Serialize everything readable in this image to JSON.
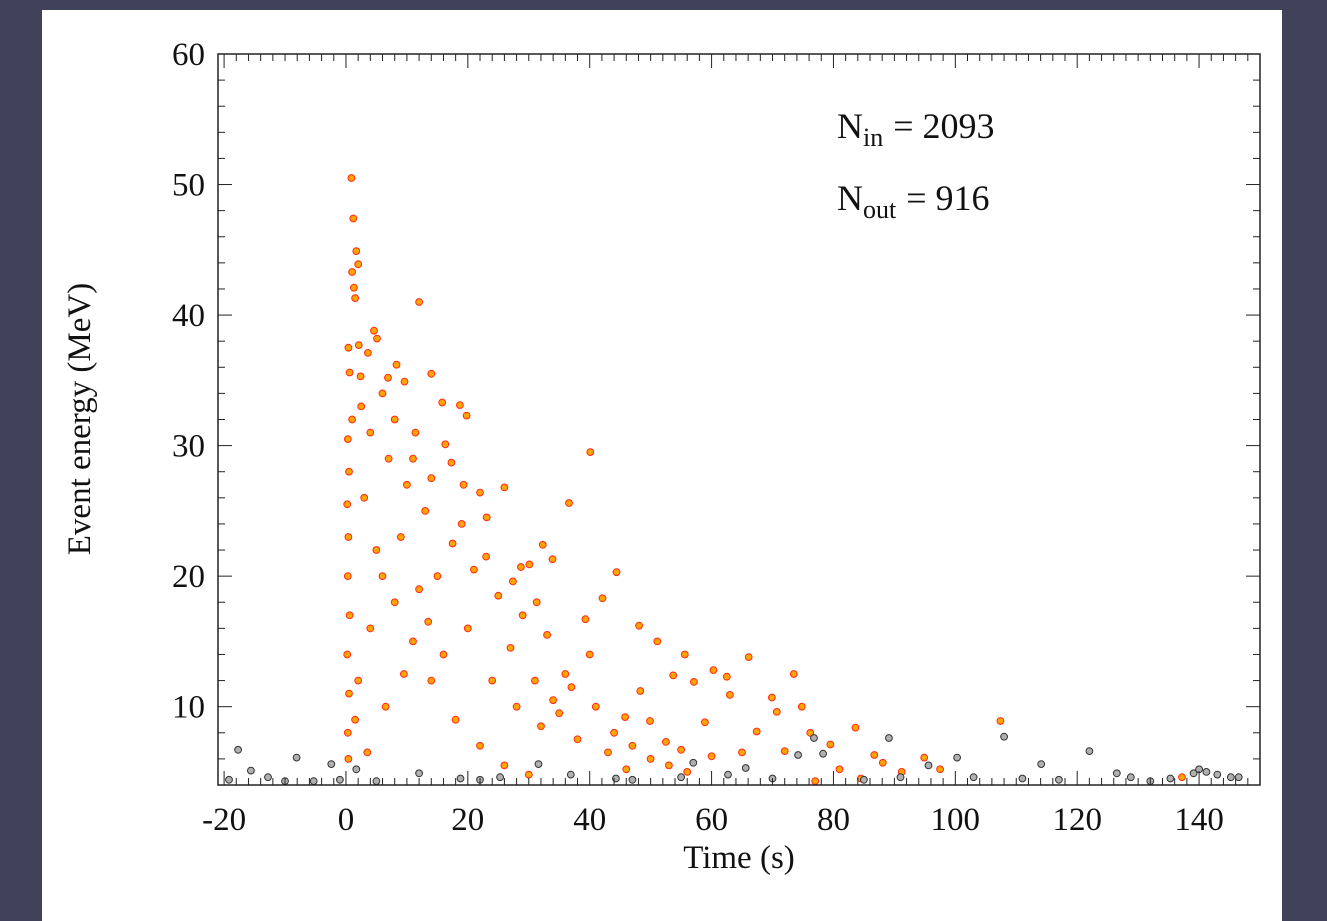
{
  "chart_data": {
    "type": "scatter",
    "xlabel": "Time (s)",
    "ylabel": "Event energy (MeV)",
    "xlim": [
      -21,
      150
    ],
    "ylim": [
      4,
      60
    ],
    "x_ticks": [
      "-20",
      "0",
      "20",
      "40",
      "60",
      "80",
      "100",
      "120",
      "140"
    ],
    "y_ticks": [
      "10",
      "20",
      "30",
      "40",
      "50",
      "60"
    ],
    "annotations": {
      "n_in": {
        "symbol": "N",
        "sub": "in",
        "value": "= 2093"
      },
      "n_out": {
        "symbol": "N",
        "sub": "out",
        "value": "= 916"
      }
    },
    "series": [
      {
        "role": "inside window",
        "color": "#ffa500",
        "edge": "#ff2a1a",
        "count": 2093,
        "points": [
          [
            0.9,
            50.5
          ],
          [
            1.2,
            47.4
          ],
          [
            1.7,
            44.9
          ],
          [
            2.0,
            43.9
          ],
          [
            1.0,
            43.3
          ],
          [
            1.3,
            42.1
          ],
          [
            1.5,
            41.3
          ],
          [
            12.0,
            41.0
          ],
          [
            4.6,
            38.8
          ],
          [
            5.1,
            38.2
          ],
          [
            2.1,
            37.7
          ],
          [
            0.4,
            37.5
          ],
          [
            3.6,
            37.1
          ],
          [
            8.3,
            36.2
          ],
          [
            6.9,
            35.2
          ],
          [
            14.0,
            35.5
          ],
          [
            0.6,
            35.6
          ],
          [
            2.4,
            35.3
          ],
          [
            9.6,
            34.9
          ],
          [
            15.8,
            33.3
          ],
          [
            18.7,
            33.1
          ],
          [
            19.8,
            32.3
          ],
          [
            11.4,
            31.0
          ],
          [
            16.3,
            30.1
          ],
          [
            40.1,
            29.5
          ],
          [
            17.3,
            28.7
          ],
          [
            26.0,
            26.8
          ],
          [
            36.6,
            25.6
          ],
          [
            19.3,
            27.0
          ],
          [
            22.0,
            26.4
          ],
          [
            23.1,
            24.5
          ],
          [
            32.3,
            22.4
          ],
          [
            33.9,
            21.3
          ],
          [
            28.7,
            20.7
          ],
          [
            44.4,
            20.3
          ],
          [
            30.1,
            20.9
          ],
          [
            27.4,
            19.6
          ],
          [
            31.3,
            18.0
          ],
          [
            39.3,
            16.7
          ],
          [
            42.1,
            18.3
          ],
          [
            51.1,
            15.0
          ],
          [
            48.1,
            16.2
          ],
          [
            55.6,
            14.0
          ],
          [
            66.1,
            13.8
          ],
          [
            62.5,
            12.3
          ],
          [
            60.3,
            12.8
          ],
          [
            73.5,
            12.5
          ],
          [
            57.1,
            11.9
          ],
          [
            53.7,
            12.4
          ],
          [
            48.3,
            11.2
          ],
          [
            63.0,
            10.9
          ],
          [
            69.9,
            10.7
          ],
          [
            74.8,
            10.0
          ],
          [
            83.6,
            8.4
          ],
          [
            107.4,
            8.9
          ],
          [
            45.8,
            9.2
          ],
          [
            49.9,
            8.9
          ],
          [
            58.9,
            8.8
          ],
          [
            67.4,
            8.1
          ],
          [
            70.7,
            9.6
          ],
          [
            76.2,
            8.0
          ],
          [
            79.5,
            7.1
          ],
          [
            86.7,
            6.3
          ],
          [
            88.1,
            5.7
          ],
          [
            94.9,
            6.1
          ],
          [
            97.5,
            5.2
          ],
          [
            91.2,
            5.0
          ],
          [
            60.0,
            6.2
          ],
          [
            55.0,
            6.7
          ],
          [
            52.5,
            7.3
          ],
          [
            65.0,
            6.5
          ],
          [
            72.0,
            6.6
          ],
          [
            81.0,
            5.2
          ],
          [
            84.5,
            4.5
          ],
          [
            77.0,
            4.3
          ],
          [
            137.2,
            4.6
          ],
          [
            40.0,
            14.0
          ],
          [
            36.0,
            12.5
          ],
          [
            33.0,
            15.5
          ],
          [
            29.0,
            17.0
          ],
          [
            25.0,
            18.5
          ],
          [
            21.0,
            20.5
          ],
          [
            17.5,
            22.5
          ],
          [
            13.0,
            25.0
          ],
          [
            10.0,
            27.0
          ],
          [
            7.0,
            29.0
          ],
          [
            4.0,
            31.0
          ],
          [
            2.5,
            33.0
          ],
          [
            1.0,
            32.0
          ],
          [
            0.3,
            30.5
          ],
          [
            0.5,
            28.0
          ],
          [
            0.2,
            25.5
          ],
          [
            0.4,
            23.0
          ],
          [
            0.3,
            20.0
          ],
          [
            0.6,
            17.0
          ],
          [
            0.2,
            14.0
          ],
          [
            0.5,
            11.0
          ],
          [
            0.3,
            8.0
          ],
          [
            0.4,
            6.0
          ],
          [
            3.0,
            26.0
          ],
          [
            5.0,
            22.0
          ],
          [
            8.0,
            18.0
          ],
          [
            11.0,
            15.0
          ],
          [
            14.0,
            12.0
          ],
          [
            18.0,
            9.0
          ],
          [
            22.0,
            7.0
          ],
          [
            26.0,
            5.5
          ],
          [
            30.0,
            4.8
          ],
          [
            35.0,
            9.5
          ],
          [
            38.0,
            7.5
          ],
          [
            43.0,
            6.5
          ],
          [
            46.0,
            5.2
          ],
          [
            16.0,
            14.0
          ],
          [
            20.0,
            16.0
          ],
          [
            24.0,
            12.0
          ],
          [
            28.0,
            10.0
          ],
          [
            32.0,
            8.5
          ],
          [
            12.0,
            19.0
          ],
          [
            9.0,
            23.0
          ],
          [
            6.0,
            20.0
          ],
          [
            4.0,
            16.0
          ],
          [
            2.0,
            12.0
          ],
          [
            1.5,
            9.0
          ],
          [
            3.5,
            6.5
          ],
          [
            6.5,
            10.0
          ],
          [
            9.5,
            12.5
          ],
          [
            13.5,
            16.5
          ],
          [
            15.0,
            20.0
          ],
          [
            19.0,
            24.0
          ],
          [
            23.0,
            21.5
          ],
          [
            27.0,
            14.5
          ],
          [
            31.0,
            12.0
          ],
          [
            34.0,
            10.5
          ],
          [
            37.0,
            11.5
          ],
          [
            41.0,
            10.0
          ],
          [
            44.0,
            8.0
          ],
          [
            47.0,
            7.0
          ],
          [
            50.0,
            6.0
          ],
          [
            53.0,
            5.5
          ],
          [
            56.0,
            5.0
          ],
          [
            8.0,
            32.0
          ],
          [
            11.0,
            29.0
          ],
          [
            14.0,
            27.5
          ],
          [
            6.0,
            34.0
          ]
        ]
      },
      {
        "role": "outside window",
        "color": "#b0b0b0",
        "edge": "#333333",
        "count": 916,
        "points": [
          [
            -17.7,
            6.7
          ],
          [
            -15.6,
            5.1
          ],
          [
            -19.2,
            4.4
          ],
          [
            -12.8,
            4.6
          ],
          [
            -8.1,
            6.1
          ],
          [
            -2.4,
            5.6
          ],
          [
            -5.3,
            4.3
          ],
          [
            1.7,
            5.2
          ],
          [
            12.0,
            4.9
          ],
          [
            18.8,
            4.5
          ],
          [
            25.3,
            4.6
          ],
          [
            31.6,
            5.6
          ],
          [
            36.9,
            4.8
          ],
          [
            44.3,
            4.5
          ],
          [
            55.0,
            4.6
          ],
          [
            62.7,
            4.8
          ],
          [
            65.6,
            5.3
          ],
          [
            74.2,
            6.3
          ],
          [
            78.3,
            6.4
          ],
          [
            76.8,
            7.6
          ],
          [
            89.1,
            7.6
          ],
          [
            95.6,
            5.5
          ],
          [
            100.3,
            6.1
          ],
          [
            108.0,
            7.7
          ],
          [
            114.1,
            5.6
          ],
          [
            122.0,
            6.6
          ],
          [
            126.5,
            4.9
          ],
          [
            128.8,
            4.6
          ],
          [
            135.3,
            4.5
          ],
          [
            139.1,
            4.9
          ],
          [
            141.2,
            5.0
          ],
          [
            143.0,
            4.8
          ],
          [
            145.2,
            4.6
          ],
          [
            146.5,
            4.6
          ],
          [
            -10.0,
            4.3
          ],
          [
            -1.0,
            4.4
          ],
          [
            5.0,
            4.3
          ],
          [
            22.0,
            4.4
          ],
          [
            47.0,
            4.4
          ],
          [
            70.0,
            4.5
          ],
          [
            85.0,
            4.4
          ],
          [
            103.0,
            4.6
          ],
          [
            117.0,
            4.4
          ],
          [
            132.0,
            4.3
          ],
          [
            57.0,
            5.7
          ],
          [
            91.0,
            4.6
          ],
          [
            111.0,
            4.5
          ],
          [
            140.0,
            5.2
          ]
        ]
      }
    ]
  }
}
